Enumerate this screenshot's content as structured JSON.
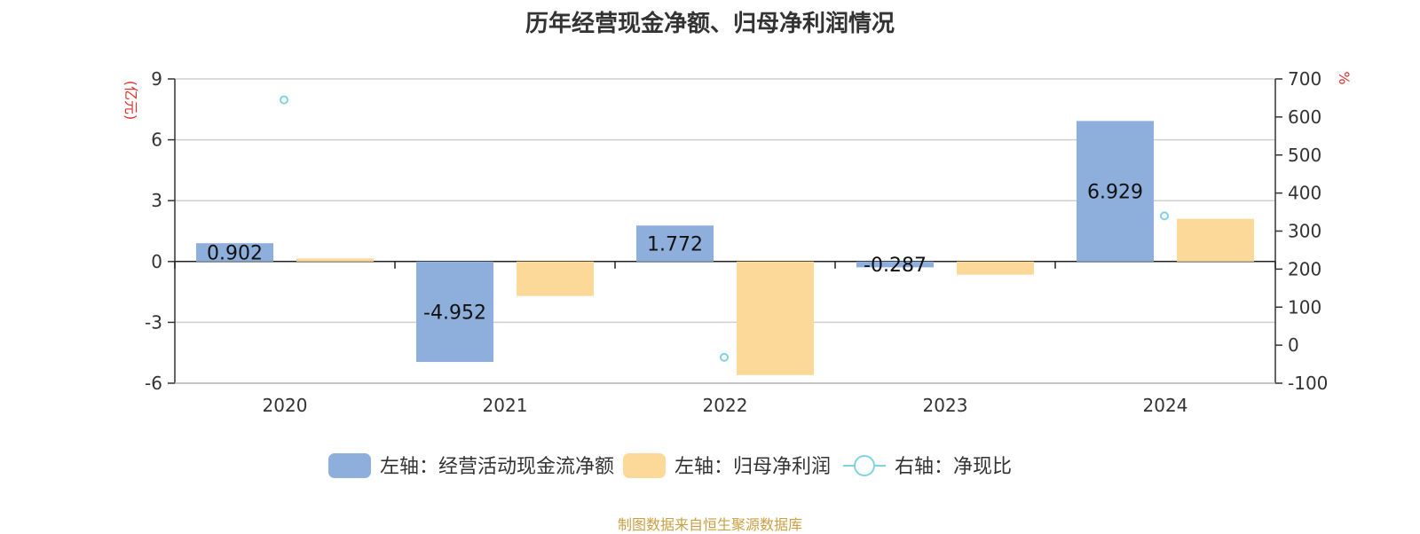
{
  "source": "制图数据来自恒生聚源数据库",
  "chart_data": {
    "type": "bar",
    "title": "历年经营现金净额、归母净利润情况",
    "categories": [
      "2020",
      "2021",
      "2022",
      "2023",
      "2024"
    ],
    "left_axis": {
      "unit": "(亿元)",
      "unit_color": "#e03030",
      "ylim": [
        -6,
        9
      ],
      "ticks": [
        9,
        6,
        3,
        0,
        -3,
        -6
      ]
    },
    "right_axis": {
      "unit": "%",
      "unit_color": "#e03030",
      "ylim": [
        -100,
        700
      ],
      "ticks": [
        700,
        600,
        500,
        400,
        300,
        200,
        100,
        0,
        -100
      ]
    },
    "grid": true,
    "legend_position": "bottom",
    "series": [
      {
        "name": "左轴：经营活动现金流净额",
        "type": "bar",
        "axis": "left",
        "color": "#8eafdc",
        "values": [
          0.902,
          -4.952,
          1.772,
          -0.287,
          6.929
        ],
        "data_labels": [
          "0.902",
          "-4.952",
          "1.772",
          "-0.287",
          "6.929"
        ]
      },
      {
        "name": "左轴：归母净利润",
        "type": "bar",
        "axis": "left",
        "color": "#fdd999",
        "values": [
          0.15,
          -1.7,
          -5.6,
          -0.65,
          2.1
        ]
      },
      {
        "name": "右轴：净现比",
        "type": "scatter",
        "axis": "right",
        "color": "#7fd3e0",
        "values": [
          645,
          null,
          -32,
          null,
          340
        ]
      }
    ]
  }
}
